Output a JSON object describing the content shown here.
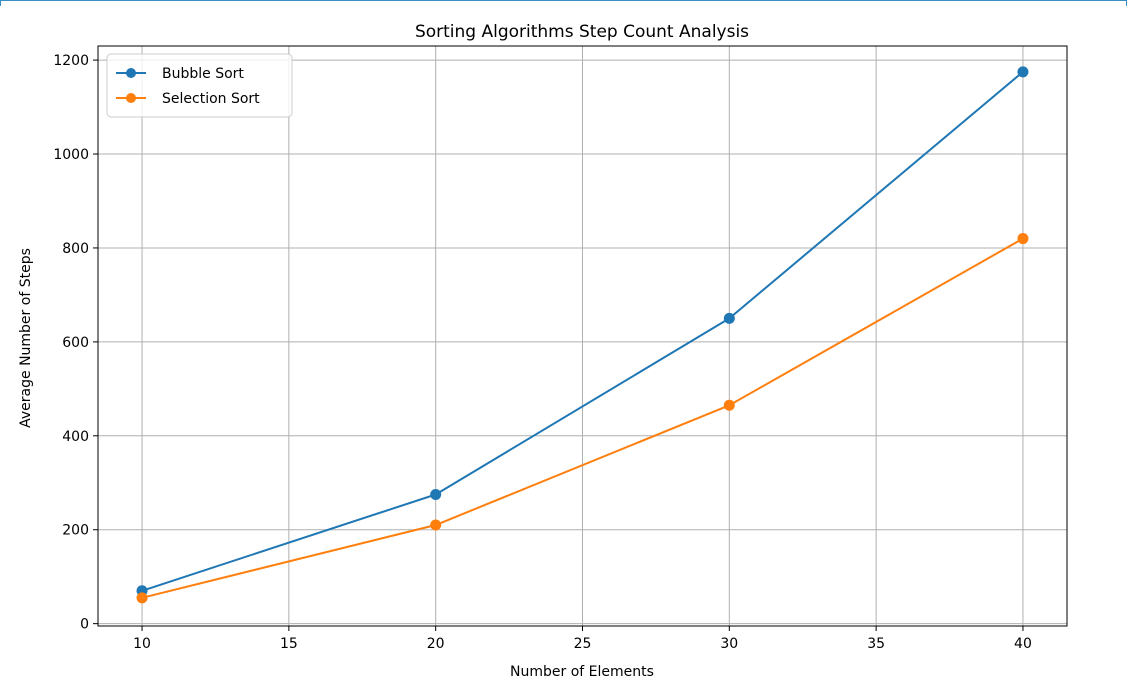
{
  "chart_data": {
    "type": "line",
    "title": "Sorting Algorithms Step Count Analysis",
    "xlabel": "Number of Elements",
    "ylabel": "Average Number of Steps",
    "x": [
      10,
      20,
      30,
      40
    ],
    "series": [
      {
        "name": "Bubble Sort",
        "color": "#1f77b4",
        "values": [
          70,
          275,
          650,
          1175
        ]
      },
      {
        "name": "Selection Sort",
        "color": "#ff7f0e",
        "values": [
          55,
          210,
          465,
          820
        ]
      }
    ],
    "xlim": [
      8.5,
      41.5
    ],
    "ylim": [
      -5,
      1230
    ],
    "xticks": [
      10,
      15,
      20,
      25,
      30,
      35,
      40
    ],
    "yticks": [
      0,
      200,
      400,
      600,
      800,
      1000,
      1200
    ],
    "grid": true,
    "legend_position": "top-left",
    "marker": "circle"
  }
}
